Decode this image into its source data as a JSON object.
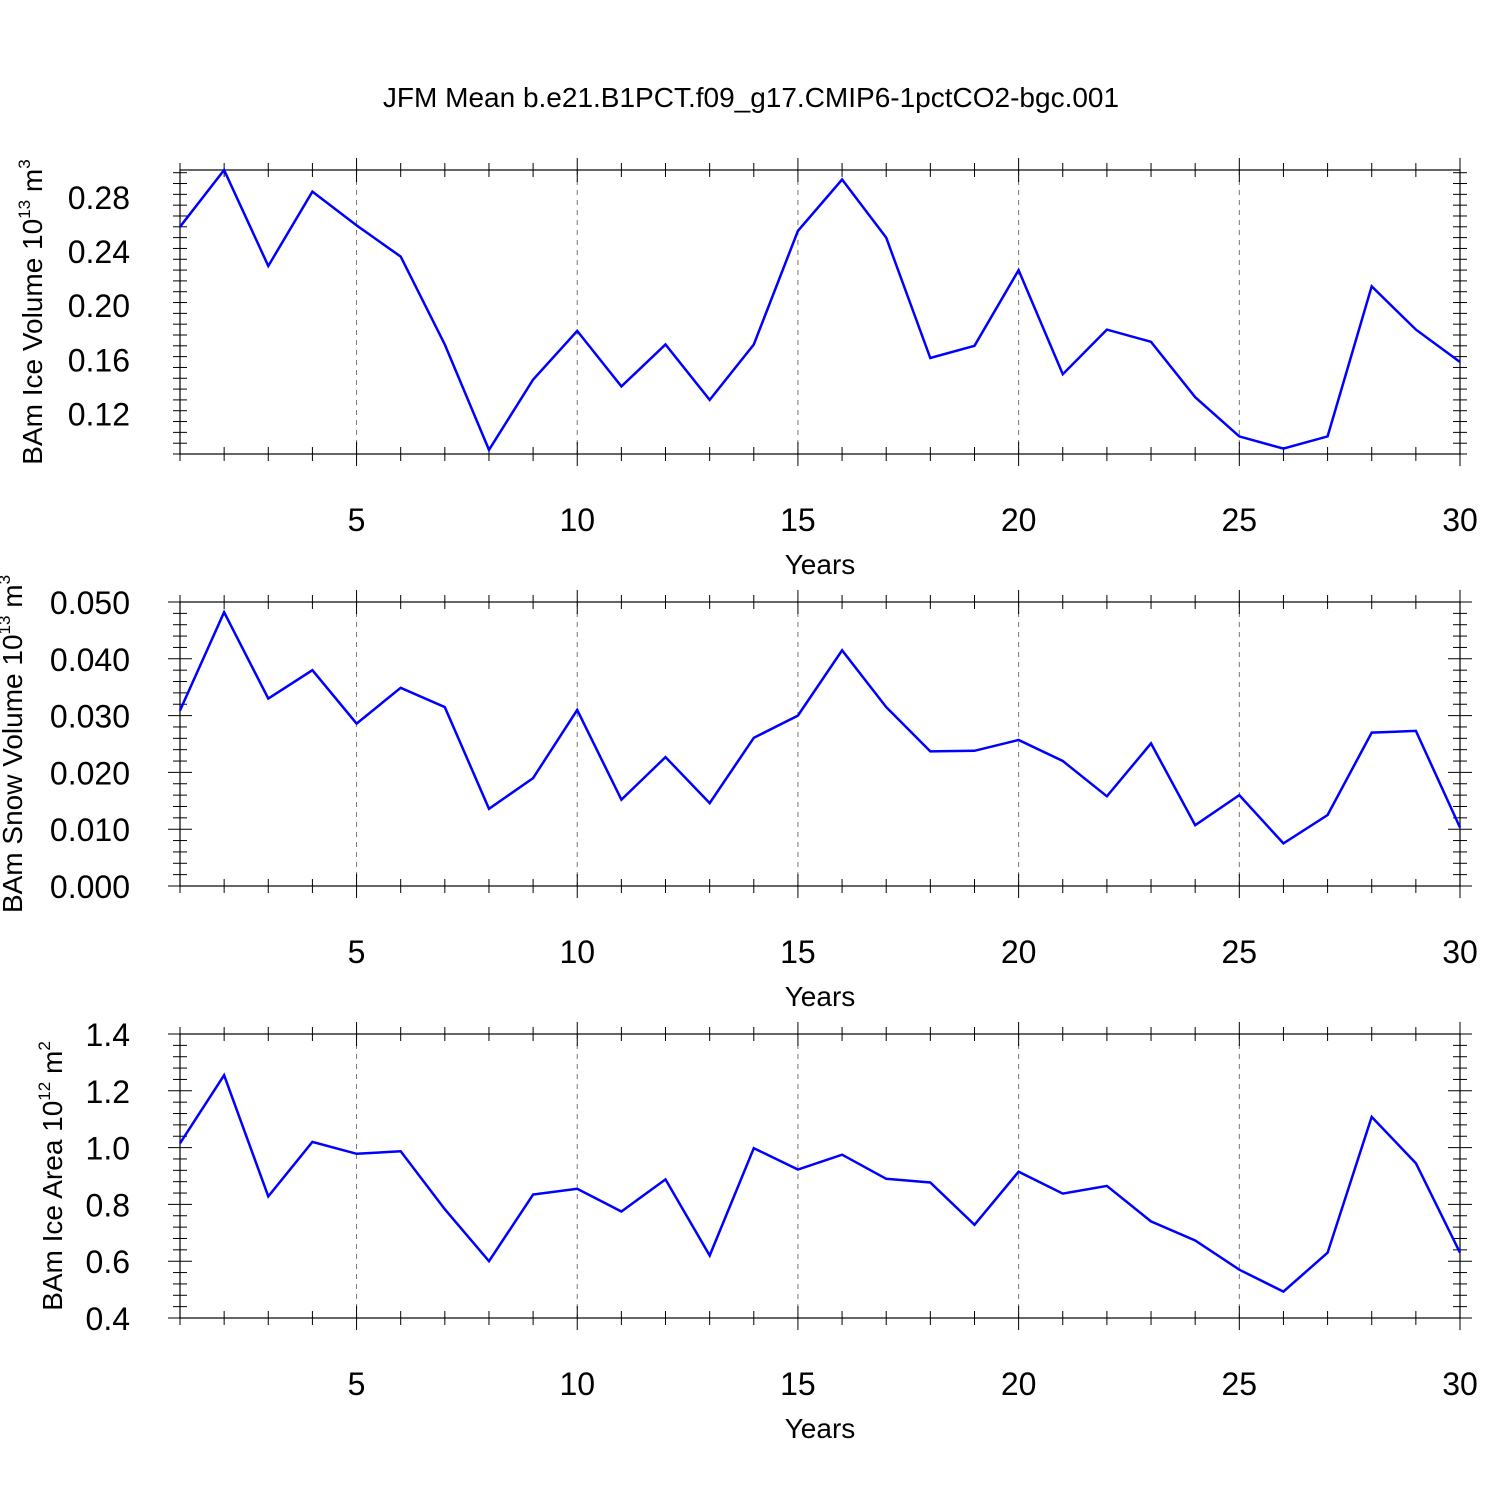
{
  "chart_data": [
    {
      "type": "line",
      "title": "JFM Mean b.e21.B1PCT.f09_g17.CMIP6-1pctCO2-bgc.001",
      "xlabel": "Years",
      "ylabel": {
        "prefix": "BAm Ice Volume 10",
        "exponent": "13",
        "unit": " m",
        "unit_exponent": "3"
      },
      "xlim": [
        1,
        30
      ],
      "ylim": [
        0.09,
        0.3
      ],
      "xticks": [
        5,
        10,
        15,
        20,
        25,
        30
      ],
      "xtick_labels": [
        "5",
        "10",
        "15",
        "20",
        "25",
        "30"
      ],
      "yticks": [
        0.12,
        0.16,
        0.2,
        0.24,
        0.28
      ],
      "ytick_labels": [
        "0.12",
        "0.16",
        "0.20",
        "0.24",
        "0.28"
      ],
      "grid": "vertical dashed at major x ticks",
      "color": "#0000ff",
      "x": [
        1,
        2,
        3,
        4,
        5,
        6,
        7,
        8,
        9,
        10,
        11,
        12,
        13,
        14,
        15,
        16,
        17,
        18,
        19,
        20,
        21,
        22,
        23,
        24,
        25,
        26,
        27,
        28,
        29,
        30
      ],
      "values": [
        0.258,
        0.3,
        0.229,
        0.284,
        0.259,
        0.236,
        0.171,
        0.093,
        0.145,
        0.181,
        0.14,
        0.171,
        0.13,
        0.171,
        0.255,
        0.293,
        0.25,
        0.161,
        0.17,
        0.226,
        0.149,
        0.182,
        0.173,
        0.132,
        0.103,
        0.094,
        0.103,
        0.214,
        0.182,
        0.158
      ]
    },
    {
      "type": "line",
      "xlabel": "Years",
      "ylabel": {
        "prefix": "BAm Snow Volume 10",
        "exponent": "13",
        "unit": " m",
        "unit_exponent": "3"
      },
      "xlim": [
        1,
        30
      ],
      "ylim": [
        0.0,
        0.05
      ],
      "xticks": [
        5,
        10,
        15,
        20,
        25,
        30
      ],
      "xtick_labels": [
        "5",
        "10",
        "15",
        "20",
        "25",
        "30"
      ],
      "yticks": [
        0.0,
        0.01,
        0.02,
        0.03,
        0.04,
        0.05
      ],
      "ytick_labels": [
        "0.000",
        "0.010",
        "0.020",
        "0.030",
        "0.040",
        "0.050"
      ],
      "grid": "vertical dashed at major x ticks",
      "color": "#0000ff",
      "x": [
        1,
        2,
        3,
        4,
        5,
        6,
        7,
        8,
        9,
        10,
        11,
        12,
        13,
        14,
        15,
        16,
        17,
        18,
        19,
        20,
        21,
        22,
        23,
        24,
        25,
        26,
        27,
        28,
        29,
        30
      ],
      "values": [
        0.0309,
        0.0482,
        0.033,
        0.038,
        0.0286,
        0.0349,
        0.0315,
        0.0136,
        0.019,
        0.031,
        0.0152,
        0.0227,
        0.0146,
        0.0261,
        0.03,
        0.0415,
        0.0315,
        0.0237,
        0.0238,
        0.0257,
        0.022,
        0.0158,
        0.0251,
        0.0107,
        0.016,
        0.0075,
        0.0125,
        0.027,
        0.0273,
        0.0103
      ]
    },
    {
      "type": "line",
      "xlabel": "Years",
      "ylabel": {
        "prefix": "BAm Ice Area 10",
        "exponent": "12",
        "unit": " m",
        "unit_exponent": "2"
      },
      "xlim": [
        1,
        30
      ],
      "ylim": [
        0.4,
        1.4
      ],
      "xticks": [
        5,
        10,
        15,
        20,
        25,
        30
      ],
      "xtick_labels": [
        "5",
        "10",
        "15",
        "20",
        "25",
        "30"
      ],
      "yticks": [
        0.4,
        0.6,
        0.8,
        1.0,
        1.2,
        1.4
      ],
      "ytick_labels": [
        "0.4",
        "0.6",
        "0.8",
        "1.0",
        "1.2",
        "1.4"
      ],
      "grid": "vertical dashed at major x ticks",
      "color": "#0000ff",
      "x": [
        1,
        2,
        3,
        4,
        5,
        6,
        7,
        8,
        9,
        10,
        11,
        12,
        13,
        14,
        15,
        16,
        17,
        18,
        19,
        20,
        21,
        22,
        23,
        24,
        25,
        26,
        27,
        28,
        29,
        30
      ],
      "values": [
        1.015,
        1.255,
        0.828,
        1.02,
        0.978,
        0.987,
        0.783,
        0.6,
        0.835,
        0.855,
        0.775,
        0.888,
        0.62,
        0.998,
        0.923,
        0.975,
        0.89,
        0.877,
        0.728,
        0.915,
        0.838,
        0.865,
        0.74,
        0.673,
        0.57,
        0.493,
        0.63,
        1.108,
        0.945,
        0.63
      ]
    }
  ]
}
